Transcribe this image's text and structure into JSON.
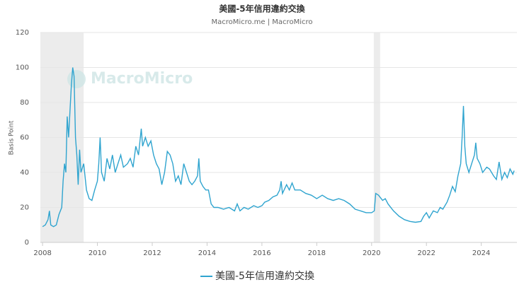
{
  "chart_data": {
    "type": "line",
    "title": "美國-5年信用違約交換",
    "subtitle": "MacroMicro.me | MacroMicro",
    "watermark": "MacroMicro",
    "ylabel": "Basis Point",
    "xlim": [
      2007.92,
      2025.3
    ],
    "ylim": [
      0,
      120
    ],
    "xticks": [
      2008,
      2010,
      2012,
      2014,
      2016,
      2018,
      2020,
      2022,
      2024
    ],
    "yticks": [
      0,
      20,
      40,
      60,
      80,
      100,
      120
    ],
    "grid": true,
    "legend": "bottom",
    "shaded_regions": [
      [
        2007.92,
        2009.5
      ],
      [
        2020.08,
        2020.31
      ]
    ],
    "shade_color": "#ececec",
    "x": [
      2008.0,
      2008.1,
      2008.2,
      2008.25,
      2008.3,
      2008.4,
      2008.5,
      2008.6,
      2008.7,
      2008.75,
      2008.8,
      2008.85,
      2008.9,
      2008.95,
      2009.0,
      2009.05,
      2009.1,
      2009.15,
      2009.2,
      2009.25,
      2009.3,
      2009.35,
      2009.4,
      2009.5,
      2009.6,
      2009.7,
      2009.8,
      2009.9,
      2010.0,
      2010.05,
      2010.1,
      2010.15,
      2010.25,
      2010.35,
      2010.45,
      2010.55,
      2010.65,
      2010.75,
      2010.85,
      2010.95,
      2011.1,
      2011.2,
      2011.3,
      2011.4,
      2011.5,
      2011.6,
      2011.65,
      2011.75,
      2011.85,
      2011.95,
      2012.05,
      2012.15,
      2012.25,
      2012.35,
      2012.45,
      2012.55,
      2012.65,
      2012.75,
      2012.85,
      2012.95,
      2013.05,
      2013.15,
      2013.25,
      2013.35,
      2013.45,
      2013.55,
      2013.65,
      2013.7,
      2013.75,
      2013.85,
      2013.95,
      2014.05,
      2014.15,
      2014.25,
      2014.4,
      2014.6,
      2014.8,
      2015.0,
      2015.1,
      2015.2,
      2015.35,
      2015.5,
      2015.7,
      2015.85,
      2016.0,
      2016.1,
      2016.25,
      2016.4,
      2016.55,
      2016.65,
      2016.7,
      2016.75,
      2016.9,
      2017.0,
      2017.1,
      2017.2,
      2017.4,
      2017.6,
      2017.8,
      2018.0,
      2018.2,
      2018.4,
      2018.6,
      2018.8,
      2019.0,
      2019.2,
      2019.4,
      2019.6,
      2019.8,
      2020.0,
      2020.1,
      2020.15,
      2020.25,
      2020.4,
      2020.5,
      2020.6,
      2020.8,
      2021.0,
      2021.2,
      2021.4,
      2021.6,
      2021.8,
      2021.9,
      2022.0,
      2022.1,
      2022.25,
      2022.4,
      2022.5,
      2022.6,
      2022.75,
      2022.85,
      2022.95,
      2023.05,
      2023.15,
      2023.25,
      2023.3,
      2023.35,
      2023.4,
      2023.45,
      2023.55,
      2023.65,
      2023.75,
      2023.8,
      2023.85,
      2023.95,
      2024.05,
      2024.2,
      2024.3,
      2024.45,
      2024.55,
      2024.65,
      2024.75,
      2024.85,
      2024.95,
      2025.05,
      2025.15,
      2025.2
    ],
    "series": [
      {
        "name": "美國-5年信用違約交換",
        "color": "#2fa4cf",
        "values": [
          9,
          10,
          13,
          18,
          10,
          9,
          10,
          16,
          20,
          35,
          45,
          40,
          72,
          60,
          75,
          90,
          100,
          95,
          60,
          50,
          33,
          53,
          40,
          45,
          30,
          25,
          24,
          30,
          35,
          45,
          60,
          40,
          35,
          48,
          42,
          50,
          40,
          45,
          50,
          43,
          45,
          48,
          43,
          55,
          50,
          65,
          55,
          60,
          55,
          58,
          50,
          45,
          42,
          33,
          40,
          52,
          50,
          45,
          35,
          38,
          33,
          45,
          40,
          35,
          33,
          35,
          38,
          48,
          35,
          32,
          30,
          30,
          22,
          20,
          20,
          19,
          20,
          18,
          22,
          18,
          20,
          19,
          21,
          20,
          21,
          23,
          24,
          26,
          27,
          30,
          35,
          28,
          33,
          30,
          34,
          30,
          30,
          28,
          27,
          25,
          27,
          25,
          24,
          25,
          24,
          22,
          19,
          18,
          17,
          17,
          18,
          28,
          27,
          24,
          25,
          22,
          18,
          15,
          13,
          12,
          11.5,
          12,
          15,
          17,
          14,
          18,
          17,
          20,
          19,
          23,
          27,
          32,
          29,
          38,
          45,
          60,
          78,
          55,
          45,
          40,
          45,
          50,
          57,
          48,
          45,
          40,
          43,
          42,
          38,
          36,
          46,
          36,
          40,
          37,
          42,
          39,
          41
        ]
      }
    ]
  }
}
